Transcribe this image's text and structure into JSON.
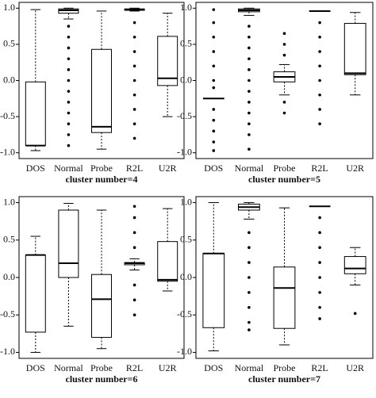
{
  "chart_data": [
    {
      "type": "box",
      "xlabel": "cluster number=4",
      "categories": [
        "DOS",
        "Normal",
        "Probe",
        "R2L",
        "U2R"
      ],
      "ylim": [
        -1.08,
        1.08
      ],
      "yticks": [
        {
          "value": 1,
          "label": "1.0"
        },
        0.5,
        {
          "value": 0,
          "label": "0.0"
        },
        -0.5,
        {
          "value": -1,
          "label": "-1.0"
        }
      ],
      "boxes": [
        {
          "min": -0.97,
          "q1": -0.9,
          "median": -0.9,
          "q3": -0.02,
          "max": 0.98,
          "outliers": []
        },
        {
          "min": 0.85,
          "q1": 0.93,
          "median": 0.97,
          "q3": 0.99,
          "max": 1.0,
          "outliers": [
            0.75,
            0.6,
            0.45,
            0.3,
            0.15,
            0,
            -0.15,
            -0.3,
            -0.45,
            -0.6,
            -0.75,
            -0.9
          ]
        },
        {
          "min": -0.95,
          "q1": -0.72,
          "median": -0.64,
          "q3": 0.43,
          "max": 0.96,
          "outliers": []
        },
        {
          "min": 0.96,
          "q1": 0.97,
          "median": 0.98,
          "q3": 0.99,
          "max": 1.0,
          "outliers": [
            0.8,
            0.6,
            0.4,
            0.2,
            0,
            -0.2,
            -0.4,
            -0.6,
            -0.8
          ]
        },
        {
          "min": -0.5,
          "q1": -0.07,
          "median": 0.03,
          "q3": 0.61,
          "max": 0.93,
          "outliers": []
        }
      ]
    },
    {
      "type": "box",
      "xlabel": "cluster number=5",
      "categories": [
        "DOS",
        "Normal",
        "Probe",
        "R2L",
        "U2R"
      ],
      "ylim": [
        -1.08,
        1.08
      ],
      "yticks": [
        {
          "value": 1,
          "label": "1.0"
        },
        0.5,
        {
          "value": 0,
          "label": "0.0"
        },
        -0.5,
        {
          "value": -1,
          "label": "-1.0"
        }
      ],
      "boxes": [
        {
          "min": -0.25,
          "q1": -0.25,
          "median": -0.25,
          "q3": -0.25,
          "max": -0.25,
          "outliers": [
            0.98,
            0.8,
            0.6,
            0.4,
            0.2,
            0,
            -0.1,
            -0.4,
            -0.55,
            -0.7,
            -0.85,
            -0.97
          ]
        },
        {
          "min": 0.9,
          "q1": 0.95,
          "median": 0.97,
          "q3": 0.99,
          "max": 1.0,
          "outliers": [
            0.75,
            0.6,
            0.45,
            0.3,
            0.15,
            0,
            -0.15,
            -0.3,
            -0.45,
            -0.6,
            -0.75,
            -0.95
          ]
        },
        {
          "min": -0.2,
          "q1": -0.02,
          "median": 0.05,
          "q3": 0.12,
          "max": 0.22,
          "outliers": [
            0.65,
            0.5,
            0.35,
            -0.3,
            -0.45
          ]
        },
        {
          "min": 0.96,
          "q1": 0.96,
          "median": 0.96,
          "q3": 0.96,
          "max": 0.96,
          "outliers": [
            0.8,
            0.6,
            0.4,
            0.2,
            0,
            -0.2,
            -0.4,
            -0.6
          ]
        },
        {
          "min": -0.2,
          "q1": 0.08,
          "median": 0.1,
          "q3": 0.79,
          "max": 0.94,
          "outliers": []
        }
      ]
    },
    {
      "type": "box",
      "xlabel": "cluster number=6",
      "categories": [
        "DOS",
        "Normal",
        "Probe",
        "R2L",
        "U2R"
      ],
      "ylim": [
        -1.08,
        1.08
      ],
      "yticks": [
        {
          "value": 1,
          "label": "1.0"
        },
        0.5,
        {
          "value": 0,
          "label": "0.0"
        },
        -0.5,
        {
          "value": -1,
          "label": "-1.0"
        }
      ],
      "boxes": [
        {
          "min": -1.0,
          "q1": -0.73,
          "median": 0.3,
          "q3": 0.3,
          "max": 0.55,
          "outliers": []
        },
        {
          "min": -0.65,
          "q1": 0.0,
          "median": 0.19,
          "q3": 0.9,
          "max": 0.99,
          "outliers": []
        },
        {
          "min": -0.95,
          "q1": -0.8,
          "median": -0.29,
          "q3": 0.04,
          "max": 0.9,
          "outliers": []
        },
        {
          "min": 0.1,
          "q1": 0.17,
          "median": 0.19,
          "q3": 0.2,
          "max": 0.25,
          "outliers": [
            0.95,
            0.8,
            0.6,
            0.4,
            -0.1,
            -0.3,
            -0.5
          ]
        },
        {
          "min": -0.18,
          "q1": -0.05,
          "median": -0.03,
          "q3": 0.48,
          "max": 0.92,
          "outliers": []
        }
      ]
    },
    {
      "type": "box",
      "xlabel": "cluster number=7",
      "categories": [
        "DOS",
        "Normal",
        "Probe",
        "R2L",
        "U2R"
      ],
      "ylim": [
        -1.08,
        1.08
      ],
      "yticks": [
        {
          "value": 1,
          "label": "1.0"
        },
        0.5,
        {
          "value": 0,
          "label": "0.0"
        },
        -0.5,
        {
          "value": -1,
          "label": "-1.0"
        }
      ],
      "boxes": [
        {
          "min": -0.98,
          "q1": -0.67,
          "median": 0.32,
          "q3": 0.32,
          "max": 1.0,
          "outliers": []
        },
        {
          "min": 0.78,
          "q1": 0.9,
          "median": 0.94,
          "q3": 0.98,
          "max": 1.0,
          "outliers": [
            0.6,
            0.4,
            0.2,
            0,
            -0.2,
            -0.4,
            -0.6,
            -0.7
          ]
        },
        {
          "min": -0.9,
          "q1": -0.68,
          "median": -0.14,
          "q3": 0.14,
          "max": 0.93,
          "outliers": []
        },
        {
          "min": 0.95,
          "q1": 0.95,
          "median": 0.95,
          "q3": 0.95,
          "max": 0.95,
          "outliers": [
            0.8,
            0.6,
            0.4,
            0.2,
            0,
            -0.2,
            -0.4,
            -0.55
          ]
        },
        {
          "min": -0.1,
          "q1": 0.05,
          "median": 0.12,
          "q3": 0.28,
          "max": 0.4,
          "outliers": [
            -0.48
          ]
        }
      ]
    }
  ]
}
